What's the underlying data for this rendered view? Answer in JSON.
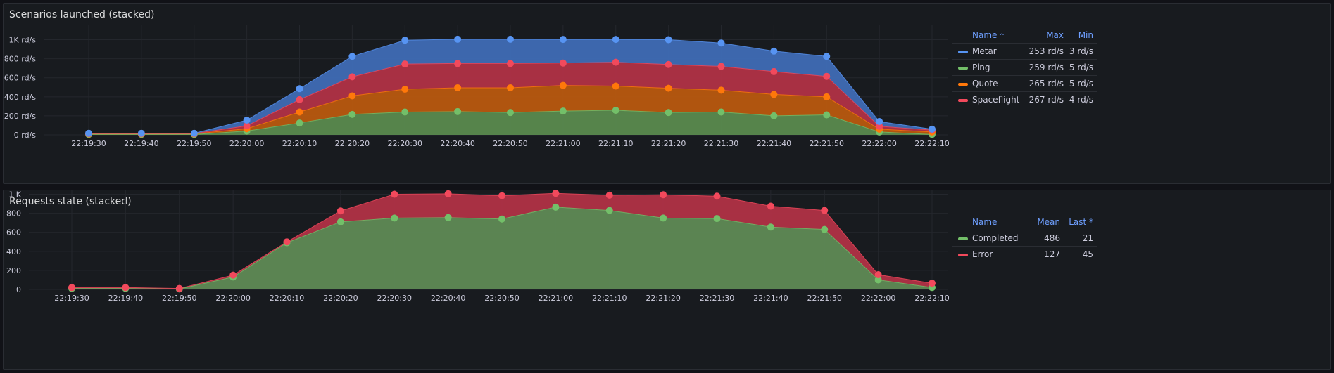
{
  "panels": [
    {
      "id": "p1",
      "title": "Scenarios launched (stacked)",
      "legend_headers": [
        "Name",
        "Max",
        "Min"
      ],
      "sort_icon": "^",
      "legend_rows": [
        {
          "name": "Metar",
          "color": "#5794f2",
          "vals": [
            "253 rd/s",
            "3 rd/s"
          ]
        },
        {
          "name": "Ping",
          "color": "#73bf69",
          "vals": [
            "259 rd/s",
            "5 rd/s"
          ]
        },
        {
          "name": "Quote",
          "color": "#ff780a",
          "vals": [
            "265 rd/s",
            "5 rd/s"
          ]
        },
        {
          "name": "Spaceflight",
          "color": "#f2495c",
          "vals": [
            "267 rd/s",
            "4 rd/s"
          ]
        }
      ]
    },
    {
      "id": "p2",
      "title": "Requests state (stacked)",
      "legend_headers": [
        "Name",
        "Mean",
        "Last *"
      ],
      "sort_icon": "",
      "legend_rows": [
        {
          "name": "Completed",
          "color": "#73bf69",
          "vals": [
            "486",
            "21"
          ]
        },
        {
          "name": "Error",
          "color": "#f2495c",
          "vals": [
            "127",
            "45"
          ]
        }
      ]
    }
  ],
  "chart_data": [
    {
      "type": "area",
      "stacked": true,
      "title": "Scenarios launched (stacked)",
      "x": [
        "22:19:30",
        "22:19:40",
        "22:19:50",
        "22:20:00",
        "22:20:10",
        "22:20:20",
        "22:20:30",
        "22:20:40",
        "22:20:50",
        "22:21:00",
        "22:21:10",
        "22:21:20",
        "22:21:30",
        "22:21:40",
        "22:21:50",
        "22:22:00",
        "22:22:10"
      ],
      "ylim": [
        0,
        1100
      ],
      "yticks": [
        0,
        200,
        400,
        600,
        800,
        1000
      ],
      "ytick_labels": [
        "0 rd/s",
        "200 rd/s",
        "400 rd/s",
        "600 rd/s",
        "800 rd/s",
        "1K rd/s"
      ],
      "series": [
        {
          "name": "Ping",
          "color": "#73bf69",
          "fill": "#5a8a4e",
          "values": [
            5,
            5,
            5,
            40,
            125,
            215,
            240,
            245,
            235,
            250,
            258,
            235,
            240,
            200,
            210,
            30,
            5
          ]
        },
        {
          "name": "Quote",
          "color": "#ff780a",
          "fill": "#b8580f",
          "values": [
            5,
            5,
            5,
            25,
            115,
            195,
            240,
            250,
            260,
            270,
            255,
            255,
            230,
            225,
            190,
            30,
            25
          ]
        },
        {
          "name": "Spaceflight",
          "color": "#f2495c",
          "fill": "#b03246",
          "values": [
            4,
            4,
            4,
            30,
            130,
            200,
            265,
            255,
            255,
            235,
            250,
            250,
            250,
            240,
            215,
            30,
            20
          ]
        },
        {
          "name": "Metar",
          "color": "#5794f2",
          "fill": "#3f6cb5",
          "values": [
            3,
            3,
            3,
            60,
            115,
            215,
            250,
            255,
            255,
            248,
            240,
            260,
            245,
            215,
            210,
            50,
            10
          ]
        }
      ]
    },
    {
      "type": "area",
      "stacked": true,
      "title": "Requests state (stacked)",
      "x": [
        "22:19:30",
        "22:19:40",
        "22:19:50",
        "22:20:00",
        "22:20:10",
        "22:20:20",
        "22:20:30",
        "22:20:40",
        "22:20:50",
        "22:21:00",
        "22:21:10",
        "22:21:20",
        "22:21:30",
        "22:21:40",
        "22:21:50",
        "22:22:00",
        "22:22:10"
      ],
      "ylim": [
        0,
        1100
      ],
      "yticks": [
        0,
        200,
        400,
        600,
        800,
        1000
      ],
      "ytick_labels": [
        "0",
        "200",
        "400",
        "600",
        "800",
        "1 K"
      ],
      "series": [
        {
          "name": "Completed",
          "color": "#73bf69",
          "fill": "#5f8a55",
          "values": [
            10,
            10,
            5,
            130,
            490,
            710,
            750,
            755,
            740,
            865,
            830,
            750,
            745,
            655,
            630,
            100,
            20
          ]
        },
        {
          "name": "Error",
          "color": "#f2495c",
          "fill": "#b03246",
          "values": [
            10,
            10,
            5,
            20,
            10,
            115,
            250,
            250,
            245,
            145,
            160,
            245,
            235,
            220,
            200,
            55,
            45
          ]
        }
      ]
    }
  ]
}
